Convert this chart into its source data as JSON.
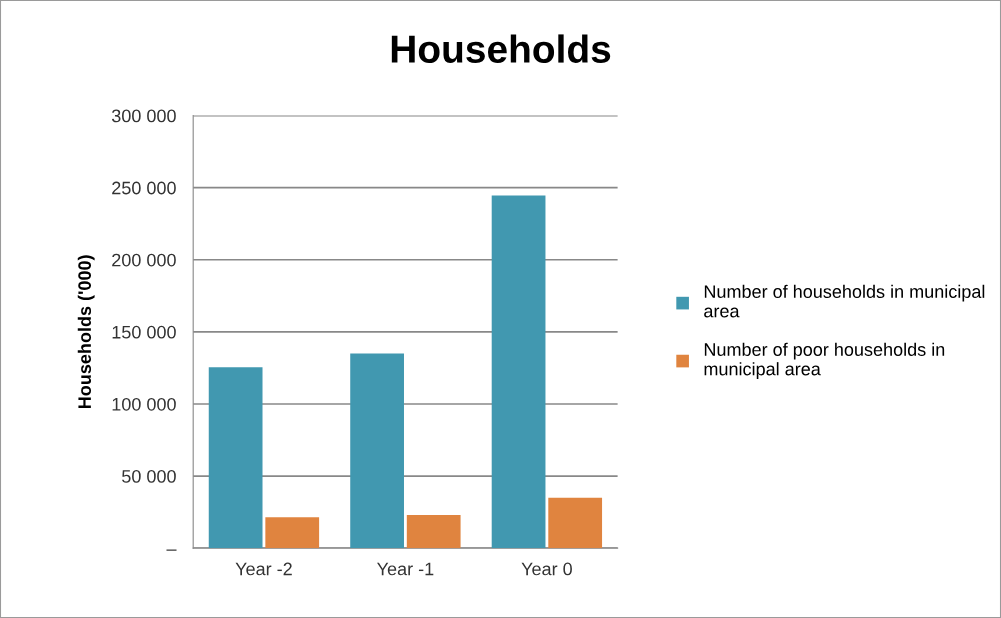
{
  "chart_data": {
    "type": "bar",
    "title": "Households",
    "ylabel": "Households ('000)",
    "categories": [
      "Year -2",
      "Year -1",
      "Year 0"
    ],
    "series": [
      {
        "name": "Number of households in municipal area",
        "color": "#4198b0",
        "values": [
          125500,
          135000,
          244500
        ]
      },
      {
        "name": "Number of poor households in municipal area",
        "color": "#e0843f",
        "values": [
          21500,
          23000,
          35000
        ]
      }
    ],
    "ylim": [
      0,
      300000
    ],
    "yticks": [
      {
        "value": 0,
        "label": "–"
      },
      {
        "value": 50000,
        "label": "50 000"
      },
      {
        "value": 100000,
        "label": "100 000"
      },
      {
        "value": 150000,
        "label": "150 000"
      },
      {
        "value": 200000,
        "label": "200 000"
      },
      {
        "value": 250000,
        "label": "250 000"
      },
      {
        "value": 300000,
        "label": "300 000"
      }
    ],
    "grid": "y",
    "legend": "right"
  }
}
